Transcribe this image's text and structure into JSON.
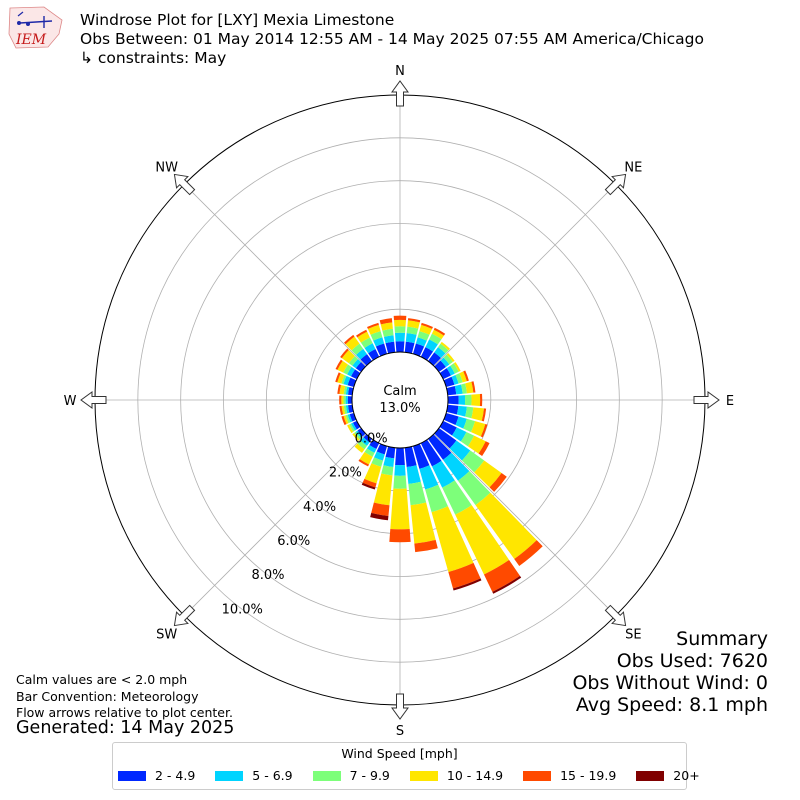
{
  "header": {
    "title": "Windrose Plot for [LXY] Mexia Limestone",
    "subtitle": "Obs Between: 01 May 2014 12:55 AM - 14 May 2025 07:55 AM America/Chicago",
    "constraints": "↳ constraints: May",
    "logo_text": "IEM"
  },
  "notes": {
    "calm_def": "Calm values are < 2.0 mph",
    "bar_convention": "Bar Convention: Meteorology",
    "flow_arrows": "Flow arrows relative to plot center.",
    "generated": "Generated: 14 May 2025"
  },
  "summary": {
    "heading": "Summary",
    "obs_used": "Obs Used: 7620",
    "obs_without_wind": "Obs Without Wind: 0",
    "avg_speed": "Avg Speed: 8.1 mph"
  },
  "legend": {
    "title": "Wind Speed [mph]"
  },
  "chart_data": {
    "type": "windrose",
    "calm": {
      "label": "Calm",
      "value_label": "13.0%",
      "value": 13.0
    },
    "compass_labels": [
      "N",
      "NE",
      "E",
      "SE",
      "S",
      "SW",
      "W",
      "NW"
    ],
    "radial_tick_labels": [
      "0.0%",
      "2.0%",
      "4.0%",
      "6.0%",
      "8.0%",
      "10.0%"
    ],
    "radial_ticks": [
      0,
      2,
      4,
      6,
      8,
      10,
      12
    ],
    "rmax": 12.0,
    "grid": true,
    "bins": [
      {
        "label": "2 - 4.9",
        "color": "#0028ff"
      },
      {
        "label": "5 - 6.9",
        "color": "#00d4ff"
      },
      {
        "label": "7 - 9.9",
        "color": "#7dff7a"
      },
      {
        "label": "10 - 14.9",
        "color": "#ffe600"
      },
      {
        "label": "15 - 19.9",
        "color": "#ff4a00"
      },
      {
        "label": "20+",
        "color": "#800000"
      }
    ],
    "directions": [
      0,
      10,
      20,
      30,
      40,
      50,
      60,
      70,
      80,
      90,
      100,
      110,
      120,
      130,
      140,
      150,
      160,
      170,
      180,
      190,
      200,
      210,
      220,
      230,
      240,
      250,
      260,
      270,
      280,
      290,
      300,
      310,
      320,
      330,
      340,
      350
    ],
    "values": [
      [
        0.5,
        0.4,
        0.3,
        0.3,
        0.2,
        0.0
      ],
      [
        0.5,
        0.4,
        0.3,
        0.3,
        0.1,
        0.0
      ],
      [
        0.5,
        0.3,
        0.3,
        0.3,
        0.1,
        0.0
      ],
      [
        0.5,
        0.4,
        0.3,
        0.2,
        0.1,
        0.0
      ],
      [
        0.5,
        0.3,
        0.2,
        0.1,
        0.0,
        0.0
      ],
      [
        0.4,
        0.2,
        0.2,
        0.1,
        0.0,
        0.0
      ],
      [
        0.4,
        0.2,
        0.2,
        0.1,
        0.0,
        0.0
      ],
      [
        0.4,
        0.2,
        0.2,
        0.2,
        0.1,
        0.0
      ],
      [
        0.4,
        0.3,
        0.2,
        0.3,
        0.1,
        0.0
      ],
      [
        0.5,
        0.3,
        0.3,
        0.4,
        0.1,
        0.0
      ],
      [
        0.5,
        0.4,
        0.3,
        0.5,
        0.1,
        0.0
      ],
      [
        0.6,
        0.4,
        0.4,
        0.5,
        0.1,
        0.0
      ],
      [
        0.7,
        0.5,
        0.4,
        0.6,
        0.2,
        0.0
      ],
      [
        1.0,
        0.8,
        0.8,
        1.0,
        0.3,
        0.0
      ],
      [
        1.2,
        1.2,
        1.4,
        3.1,
        0.4,
        0.0
      ],
      [
        1.2,
        1.1,
        1.4,
        3.1,
        0.9,
        0.1
      ],
      [
        1.1,
        1.0,
        1.1,
        2.9,
        0.8,
        0.1
      ],
      [
        0.9,
        0.8,
        1.0,
        1.8,
        0.4,
        0.0
      ],
      [
        0.8,
        0.5,
        0.6,
        1.9,
        0.6,
        0.0
      ],
      [
        0.5,
        0.4,
        0.4,
        1.4,
        0.5,
        0.2
      ],
      [
        0.4,
        0.3,
        0.3,
        0.8,
        0.2,
        0.1
      ],
      [
        0.3,
        0.2,
        0.2,
        0.4,
        0.1,
        0.0
      ],
      [
        0.2,
        0.2,
        0.2,
        0.2,
        0.0,
        0.0
      ],
      [
        0.2,
        0.1,
        0.1,
        0.1,
        0.0,
        0.0
      ],
      [
        0.2,
        0.1,
        0.1,
        0.1,
        0.0,
        0.0
      ],
      [
        0.2,
        0.1,
        0.1,
        0.1,
        0.1,
        0.0
      ],
      [
        0.2,
        0.1,
        0.1,
        0.1,
        0.1,
        0.0
      ],
      [
        0.2,
        0.1,
        0.1,
        0.1,
        0.1,
        0.0
      ],
      [
        0.2,
        0.1,
        0.1,
        0.2,
        0.1,
        0.0
      ],
      [
        0.3,
        0.2,
        0.1,
        0.2,
        0.1,
        0.0
      ],
      [
        0.3,
        0.2,
        0.2,
        0.3,
        0.1,
        0.0
      ],
      [
        0.3,
        0.2,
        0.2,
        0.4,
        0.1,
        0.0
      ],
      [
        0.4,
        0.3,
        0.3,
        0.4,
        0.1,
        0.0
      ],
      [
        0.4,
        0.3,
        0.3,
        0.3,
        0.1,
        0.0
      ],
      [
        0.5,
        0.3,
        0.3,
        0.3,
        0.1,
        0.0
      ],
      [
        0.5,
        0.3,
        0.3,
        0.3,
        0.2,
        0.0
      ]
    ]
  }
}
